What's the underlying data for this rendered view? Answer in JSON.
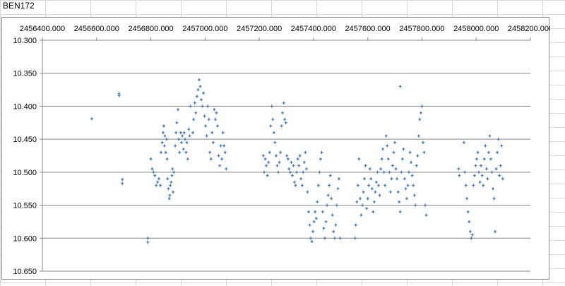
{
  "sheet": {
    "cell_a1": "BEN172"
  },
  "chart_data": {
    "type": "scatter",
    "title": "",
    "xlabel": "",
    "ylabel": "",
    "xlim": [
      2456400,
      2458200
    ],
    "ylim": [
      10.3,
      10.65
    ],
    "y_reversed": true,
    "grid": "horizontal",
    "legend": "none",
    "marker_color": "#4a7ebb",
    "x_ticks": [
      "2456400.000",
      "2456600.000",
      "2456800.000",
      "2457000.000",
      "2457200.000",
      "2457400.000",
      "2457600.000",
      "2457800.000",
      "2458000.000",
      "2458200.000"
    ],
    "y_ticks": [
      "10.300",
      "10.350",
      "10.400",
      "10.450",
      "10.500",
      "10.550",
      "10.600",
      "10.650"
    ],
    "points": [
      [
        2456582,
        10.419
      ],
      [
        2456683,
        10.381
      ],
      [
        2456683,
        10.384
      ],
      [
        2456695,
        10.511
      ],
      [
        2456695,
        10.517
      ],
      [
        2456789,
        10.6
      ],
      [
        2456789,
        10.606
      ],
      [
        2456800,
        10.48
      ],
      [
        2456805,
        10.495
      ],
      [
        2456810,
        10.5
      ],
      [
        2456815,
        10.505
      ],
      [
        2456820,
        10.52
      ],
      [
        2456825,
        10.515
      ],
      [
        2456830,
        10.51
      ],
      [
        2456835,
        10.52
      ],
      [
        2456838,
        10.47
      ],
      [
        2456842,
        10.455
      ],
      [
        2456845,
        10.44
      ],
      [
        2456848,
        10.43
      ],
      [
        2456850,
        10.46
      ],
      [
        2456852,
        10.445
      ],
      [
        2456855,
        10.47
      ],
      [
        2456858,
        10.45
      ],
      [
        2456860,
        10.48
      ],
      [
        2456862,
        10.51
      ],
      [
        2456865,
        10.525
      ],
      [
        2456868,
        10.54
      ],
      [
        2456870,
        10.535
      ],
      [
        2456872,
        10.52
      ],
      [
        2456875,
        10.515
      ],
      [
        2456878,
        10.505
      ],
      [
        2456880,
        10.495
      ],
      [
        2456882,
        10.53
      ],
      [
        2456885,
        10.5
      ],
      [
        2456890,
        10.46
      ],
      [
        2456893,
        10.44
      ],
      [
        2456896,
        10.425
      ],
      [
        2456900,
        10.405
      ],
      [
        2456903,
        10.45
      ],
      [
        2456906,
        10.47
      ],
      [
        2456910,
        10.44
      ],
      [
        2456913,
        10.455
      ],
      [
        2456916,
        10.445
      ],
      [
        2456920,
        10.465
      ],
      [
        2456923,
        10.44
      ],
      [
        2456926,
        10.45
      ],
      [
        2456930,
        10.47
      ],
      [
        2456933,
        10.455
      ],
      [
        2456936,
        10.48
      ],
      [
        2456940,
        10.435
      ],
      [
        2456943,
        10.445
      ],
      [
        2456946,
        10.4
      ],
      [
        2456955,
        10.44
      ],
      [
        2456958,
        10.42
      ],
      [
        2456962,
        10.395
      ],
      [
        2456966,
        10.41
      ],
      [
        2456970,
        10.385
      ],
      [
        2456974,
        10.375
      ],
      [
        2456978,
        10.36
      ],
      [
        2456982,
        10.37
      ],
      [
        2456986,
        10.39
      ],
      [
        2456990,
        10.4
      ],
      [
        2456994,
        10.38
      ],
      [
        2456998,
        10.415
      ],
      [
        2457002,
        10.43
      ],
      [
        2457006,
        10.445
      ],
      [
        2457010,
        10.4
      ],
      [
        2457014,
        10.42
      ],
      [
        2457018,
        10.47
      ],
      [
        2457022,
        10.48
      ],
      [
        2457026,
        10.44
      ],
      [
        2457030,
        10.455
      ],
      [
        2457034,
        10.405
      ],
      [
        2457038,
        10.42
      ],
      [
        2457042,
        10.41
      ],
      [
        2457046,
        10.43
      ],
      [
        2457050,
        10.475
      ],
      [
        2457054,
        10.49
      ],
      [
        2457058,
        10.46
      ],
      [
        2457062,
        10.48
      ],
      [
        2457066,
        10.44
      ],
      [
        2457070,
        10.46
      ],
      [
        2457074,
        10.47
      ],
      [
        2457078,
        10.495
      ],
      [
        2457215,
        10.475
      ],
      [
        2457218,
        10.5
      ],
      [
        2457222,
        10.48
      ],
      [
        2457226,
        10.49
      ],
      [
        2457230,
        10.505
      ],
      [
        2457234,
        10.485
      ],
      [
        2457238,
        10.47
      ],
      [
        2457242,
        10.43
      ],
      [
        2457246,
        10.4
      ],
      [
        2457250,
        10.42
      ],
      [
        2457254,
        10.44
      ],
      [
        2457258,
        10.455
      ],
      [
        2457262,
        10.475
      ],
      [
        2457266,
        10.49
      ],
      [
        2457270,
        10.5
      ],
      [
        2457274,
        10.485
      ],
      [
        2457278,
        10.47
      ],
      [
        2457282,
        10.43
      ],
      [
        2457286,
        10.41
      ],
      [
        2457290,
        10.395
      ],
      [
        2457294,
        10.42
      ],
      [
        2457298,
        10.425
      ],
      [
        2457302,
        10.475
      ],
      [
        2457306,
        10.48
      ],
      [
        2457310,
        10.495
      ],
      [
        2457314,
        10.5
      ],
      [
        2457318,
        10.485
      ],
      [
        2457322,
        10.505
      ],
      [
        2457326,
        10.49
      ],
      [
        2457330,
        10.515
      ],
      [
        2457334,
        10.52
      ],
      [
        2457338,
        10.5
      ],
      [
        2457342,
        10.48
      ],
      [
        2457346,
        10.49
      ],
      [
        2457350,
        10.475
      ],
      [
        2457354,
        10.51
      ],
      [
        2457358,
        10.52
      ],
      [
        2457362,
        10.5
      ],
      [
        2457366,
        10.485
      ],
      [
        2457370,
        10.47
      ],
      [
        2457374,
        10.495
      ],
      [
        2457378,
        10.53
      ],
      [
        2457382,
        10.56
      ],
      [
        2457386,
        10.58
      ],
      [
        2457390,
        10.6
      ],
      [
        2457394,
        10.605
      ],
      [
        2457398,
        10.59
      ],
      [
        2457402,
        10.575
      ],
      [
        2457406,
        10.56
      ],
      [
        2457410,
        10.57
      ],
      [
        2457414,
        10.545
      ],
      [
        2457418,
        10.52
      ],
      [
        2457422,
        10.5
      ],
      [
        2457426,
        10.48
      ],
      [
        2457430,
        10.47
      ],
      [
        2457434,
        10.56
      ],
      [
        2457438,
        10.585
      ],
      [
        2457442,
        10.6
      ],
      [
        2457446,
        10.575
      ],
      [
        2457450,
        10.55
      ],
      [
        2457454,
        10.535
      ],
      [
        2457458,
        10.52
      ],
      [
        2457462,
        10.505
      ],
      [
        2457466,
        10.54
      ],
      [
        2457470,
        10.565
      ],
      [
        2457474,
        10.59
      ],
      [
        2457478,
        10.6
      ],
      [
        2457482,
        10.58
      ],
      [
        2457486,
        10.55
      ],
      [
        2457490,
        10.525
      ],
      [
        2457494,
        10.51
      ],
      [
        2457498,
        10.6
      ],
      [
        2457553,
        10.6
      ],
      [
        2457556,
        10.58
      ],
      [
        2457560,
        10.545
      ],
      [
        2457564,
        10.52
      ],
      [
        2457568,
        10.48
      ],
      [
        2457572,
        10.54
      ],
      [
        2457576,
        10.565
      ],
      [
        2457580,
        10.55
      ],
      [
        2457584,
        10.53
      ],
      [
        2457588,
        10.51
      ],
      [
        2457592,
        10.49
      ],
      [
        2457596,
        10.555
      ],
      [
        2457600,
        10.54
      ],
      [
        2457604,
        10.52
      ],
      [
        2457608,
        10.495
      ],
      [
        2457612,
        10.51
      ],
      [
        2457616,
        10.525
      ],
      [
        2457620,
        10.56
      ],
      [
        2457624,
        10.545
      ],
      [
        2457628,
        10.53
      ],
      [
        2457632,
        10.515
      ],
      [
        2457636,
        10.5
      ],
      [
        2457640,
        10.52
      ],
      [
        2457644,
        10.535
      ],
      [
        2457648,
        10.495
      ],
      [
        2457652,
        10.48
      ],
      [
        2457656,
        10.465
      ],
      [
        2457660,
        10.5
      ],
      [
        2457664,
        10.52
      ],
      [
        2457668,
        10.445
      ],
      [
        2457672,
        10.46
      ],
      [
        2457676,
        10.48
      ],
      [
        2457680,
        10.5
      ],
      [
        2457684,
        10.53
      ],
      [
        2457688,
        10.51
      ],
      [
        2457692,
        10.49
      ],
      [
        2457696,
        10.47
      ],
      [
        2457700,
        10.455
      ],
      [
        2457704,
        10.495
      ],
      [
        2457708,
        10.51
      ],
      [
        2457712,
        10.53
      ],
      [
        2457716,
        10.545
      ],
      [
        2457720,
        10.56
      ],
      [
        2457724,
        10.5
      ],
      [
        2457728,
        10.48
      ],
      [
        2457732,
        10.465
      ],
      [
        2457736,
        10.51
      ],
      [
        2457740,
        10.525
      ],
      [
        2457744,
        10.54
      ],
      [
        2457748,
        10.52
      ],
      [
        2457752,
        10.5
      ],
      [
        2457756,
        10.47
      ],
      [
        2457760,
        10.485
      ],
      [
        2457764,
        10.505
      ],
      [
        2457768,
        10.52
      ],
      [
        2457772,
        10.535
      ],
      [
        2457776,
        10.55
      ],
      [
        2457780,
        10.49
      ],
      [
        2457784,
        10.475
      ],
      [
        2457788,
        10.445
      ],
      [
        2457792,
        10.42
      ],
      [
        2457796,
        10.41
      ],
      [
        2457800,
        10.4
      ],
      [
        2457804,
        10.455
      ],
      [
        2457808,
        10.47
      ],
      [
        2457812,
        10.55
      ],
      [
        2457816,
        10.565
      ],
      [
        2457720,
        10.37
      ],
      [
        2457935,
        10.495
      ],
      [
        2457938,
        10.505
      ],
      [
        2457955,
        10.455
      ],
      [
        2457958,
        10.5
      ],
      [
        2457962,
        10.52
      ],
      [
        2457966,
        10.54
      ],
      [
        2457970,
        10.56
      ],
      [
        2457974,
        10.575
      ],
      [
        2457978,
        10.59
      ],
      [
        2457982,
        10.6
      ],
      [
        2457986,
        10.595
      ],
      [
        2457990,
        10.52
      ],
      [
        2457994,
        10.505
      ],
      [
        2457998,
        10.49
      ],
      [
        2458002,
        10.48
      ],
      [
        2458006,
        10.47
      ],
      [
        2458010,
        10.5
      ],
      [
        2458014,
        10.515
      ],
      [
        2458018,
        10.49
      ],
      [
        2458022,
        10.505
      ],
      [
        2458026,
        10.52
      ],
      [
        2458030,
        10.48
      ],
      [
        2458034,
        10.46
      ],
      [
        2458038,
        10.495
      ],
      [
        2458042,
        10.51
      ],
      [
        2458046,
        10.47
      ],
      [
        2458050,
        10.445
      ],
      [
        2458054,
        10.48
      ],
      [
        2458058,
        10.5
      ],
      [
        2458062,
        10.525
      ],
      [
        2458066,
        10.54
      ],
      [
        2458070,
        10.59
      ],
      [
        2458074,
        10.495
      ],
      [
        2458078,
        10.47
      ],
      [
        2458082,
        10.45
      ],
      [
        2458086,
        10.505
      ],
      [
        2458090,
        10.49
      ],
      [
        2458094,
        10.46
      ],
      [
        2458098,
        10.51
      ]
    ]
  }
}
